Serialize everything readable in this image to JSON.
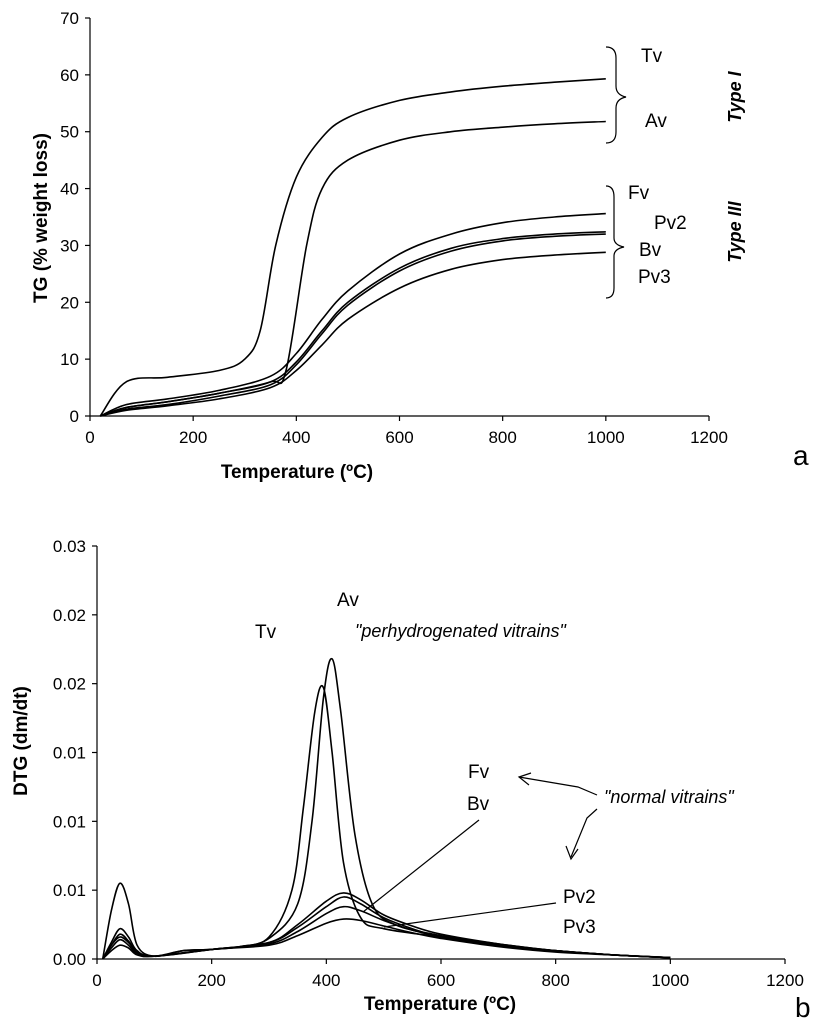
{
  "chart_data": [
    {
      "panel": "a",
      "type": "line",
      "xlabel": "Temperature (ºC)",
      "ylabel": "TG (% weight loss)",
      "xlim": [
        0,
        1200
      ],
      "ylim": [
        0,
        70
      ],
      "xticks": [
        "0",
        "200",
        "400",
        "600",
        "800",
        "1000",
        "1200"
      ],
      "yticks": [
        "0",
        "10",
        "20",
        "30",
        "40",
        "50",
        "60",
        "70"
      ],
      "group_labels": [
        "Type I",
        "Type III"
      ],
      "series": [
        {
          "name": "Tv",
          "x": [
            20,
            70,
            150,
            250,
            300,
            330,
            360,
            400,
            450,
            500,
            600,
            700,
            800,
            900,
            1000
          ],
          "y": [
            0,
            6,
            6.8,
            8,
            10,
            15,
            30,
            42,
            49,
            52.5,
            55.5,
            57,
            58,
            58.7,
            59.3
          ]
        },
        {
          "name": "Av",
          "x": [
            20,
            70,
            150,
            250,
            350,
            380,
            420,
            450,
            500,
            600,
            700,
            800,
            900,
            1000
          ],
          "y": [
            0,
            1.5,
            2.5,
            4,
            6,
            8,
            30,
            40,
            45,
            48.5,
            50,
            50.8,
            51.4,
            51.8
          ]
        },
        {
          "name": "Fv",
          "x": [
            20,
            70,
            150,
            250,
            350,
            400,
            450,
            500,
            600,
            700,
            800,
            900,
            1000
          ],
          "y": [
            0,
            2,
            3,
            4.5,
            7,
            11,
            17,
            22,
            28.5,
            32,
            34,
            35,
            35.6
          ]
        },
        {
          "name": "Pv2",
          "x": [
            20,
            70,
            150,
            250,
            350,
            400,
            450,
            500,
            600,
            700,
            800,
            900,
            1000
          ],
          "y": [
            0,
            1.5,
            2.5,
            4,
            6,
            9.5,
            15,
            20,
            26,
            29.5,
            31.2,
            32,
            32.4
          ]
        },
        {
          "name": "Bv",
          "x": [
            20,
            70,
            150,
            250,
            350,
            400,
            450,
            500,
            600,
            700,
            800,
            900,
            1000
          ],
          "y": [
            0,
            1.2,
            2,
            3.5,
            5.5,
            9,
            14.5,
            19.5,
            25.5,
            29,
            30.8,
            31.6,
            32
          ]
        },
        {
          "name": "Pv3",
          "x": [
            20,
            70,
            150,
            250,
            350,
            400,
            450,
            500,
            600,
            700,
            800,
            900,
            1000
          ],
          "y": [
            0,
            1,
            1.8,
            3,
            5,
            8,
            12.5,
            17,
            22.5,
            25.8,
            27.5,
            28.3,
            28.8
          ]
        }
      ]
    },
    {
      "panel": "b",
      "type": "line",
      "xlabel": "Temperature (ºC)",
      "ylabel": "DTG (dm/dt)",
      "xlim": [
        0,
        1200
      ],
      "ylim": [
        0,
        0.03
      ],
      "xticks": [
        "0",
        "200",
        "400",
        "600",
        "800",
        "1000",
        "1200"
      ],
      "yticks": [
        "0.00",
        "0.01",
        "0.01",
        "0.01",
        "0.02",
        "0.02",
        "0.03"
      ],
      "annotations": [
        "\"perhydrogenated vitrains\"",
        "\"normal vitrains\""
      ],
      "series": [
        {
          "name": "Tv",
          "x": [
            10,
            25,
            40,
            55,
            70,
            100,
            150,
            200,
            250,
            300,
            340,
            360,
            380,
            395,
            410,
            430,
            460,
            500,
            600,
            700,
            800,
            900,
            1000
          ],
          "y": [
            0,
            0.0035,
            0.0055,
            0.004,
            0.001,
            0.0002,
            0.0006,
            0.0007,
            0.0009,
            0.0016,
            0.005,
            0.011,
            0.018,
            0.0197,
            0.015,
            0.007,
            0.003,
            0.0022,
            0.0016,
            0.001,
            0.0006,
            0.0003,
            0.0001
          ]
        },
        {
          "name": "Av",
          "x": [
            10,
            25,
            40,
            55,
            70,
            100,
            150,
            200,
            250,
            300,
            350,
            375,
            395,
            410,
            425,
            450,
            480,
            520,
            600,
            700,
            800,
            900,
            1000
          ],
          "y": [
            0,
            0.001,
            0.0016,
            0.0012,
            0.0005,
            0.0002,
            0.0006,
            0.0007,
            0.0009,
            0.0015,
            0.004,
            0.01,
            0.019,
            0.0218,
            0.018,
            0.009,
            0.004,
            0.0025,
            0.0017,
            0.0011,
            0.0006,
            0.0003,
            0.0001
          ]
        },
        {
          "name": "Fv",
          "x": [
            10,
            25,
            40,
            55,
            70,
            100,
            200,
            300,
            350,
            400,
            430,
            460,
            500,
            550,
            600,
            700,
            800,
            900,
            1000
          ],
          "y": [
            0,
            0.0012,
            0.0022,
            0.0016,
            0.0006,
            0.0002,
            0.0007,
            0.0012,
            0.0025,
            0.0042,
            0.0048,
            0.0043,
            0.0032,
            0.0024,
            0.0018,
            0.0011,
            0.0006,
            0.0003,
            0.0001
          ]
        },
        {
          "name": "Bv",
          "x": [
            10,
            25,
            40,
            55,
            70,
            100,
            200,
            300,
            350,
            400,
            430,
            460,
            500,
            550,
            600,
            700,
            800,
            900,
            1000
          ],
          "y": [
            0,
            0.001,
            0.0018,
            0.0013,
            0.0005,
            0.0002,
            0.0007,
            0.0012,
            0.0023,
            0.0038,
            0.0045,
            0.004,
            0.003,
            0.0022,
            0.0016,
            0.001,
            0.0006,
            0.0003,
            0.0001
          ]
        },
        {
          "name": "Pv2",
          "x": [
            10,
            25,
            40,
            55,
            70,
            100,
            200,
            300,
            350,
            400,
            430,
            460,
            500,
            550,
            600,
            700,
            800,
            900,
            1000
          ],
          "y": [
            0,
            0.0008,
            0.0014,
            0.001,
            0.0004,
            0.0002,
            0.0007,
            0.0011,
            0.002,
            0.0033,
            0.0038,
            0.0035,
            0.0028,
            0.0021,
            0.0016,
            0.001,
            0.0006,
            0.0003,
            0.0001
          ]
        },
        {
          "name": "Pv3",
          "x": [
            10,
            25,
            40,
            55,
            70,
            100,
            200,
            300,
            350,
            400,
            430,
            460,
            500,
            550,
            600,
            700,
            800,
            900,
            1000
          ],
          "y": [
            0,
            0.0006,
            0.001,
            0.0008,
            0.0003,
            0.0002,
            0.0007,
            0.001,
            0.0017,
            0.0026,
            0.0029,
            0.0028,
            0.0024,
            0.0019,
            0.0015,
            0.0009,
            0.0005,
            0.0003,
            0.0001
          ]
        }
      ]
    }
  ],
  "labels_a": {
    "tv": "Tv",
    "av": "Av",
    "fv": "Fv",
    "pv2": "Pv2",
    "bv": "Bv",
    "pv3": "Pv3",
    "type1": "Type I",
    "type3": "Type III",
    "panel": "a"
  },
  "labels_b": {
    "av": "Av",
    "tv": "Tv",
    "fv": "Fv",
    "bv": "Bv",
    "pv2": "Pv2",
    "pv3": "Pv3",
    "perhydro": "\"perhydrogenated vitrains\"",
    "normal": "\"normal vitrains\"",
    "panel": "b"
  }
}
